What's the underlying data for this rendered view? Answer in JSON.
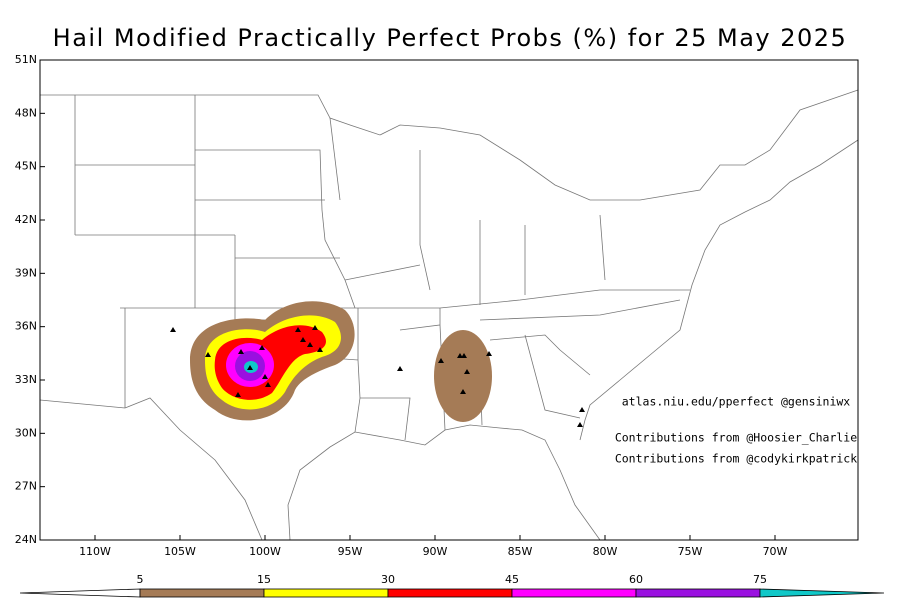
{
  "title": "Hail Modified Practically Perfect Probs (%) for 25 May 2025",
  "map": {
    "lat_labels": [
      "51N",
      "48N",
      "45N",
      "42N",
      "39N",
      "36N",
      "33N",
      "30N",
      "27N",
      "24N"
    ],
    "lon_labels": [
      "110W",
      "105W",
      "100W",
      "95W",
      "90W",
      "85W",
      "80W",
      "75W",
      "70W"
    ],
    "credits": [
      "atlas.niu.edu/pperfect @gensiniwx",
      "Contributions from @Hoosier_Charlie",
      "Contributions from @codykirkpatrick"
    ]
  },
  "colorbar": {
    "levels": [
      5,
      15,
      30,
      45,
      60,
      75
    ],
    "colors": [
      "#ffffff",
      "#a57b56",
      "#ffff00",
      "#ff0000",
      "#ff00ff",
      "#9a10e0",
      "#10c8c8"
    ]
  }
}
